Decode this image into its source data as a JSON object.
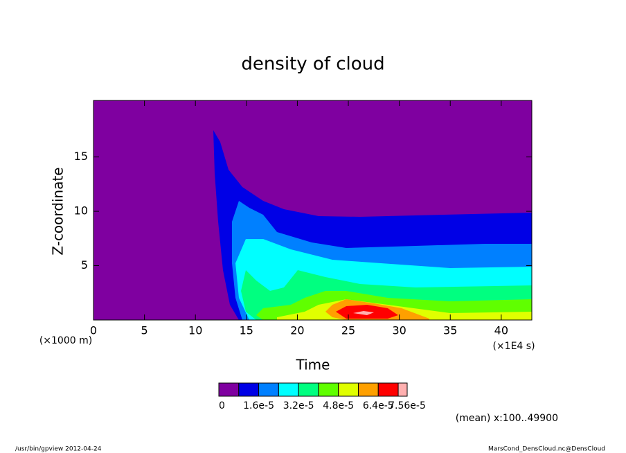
{
  "chart_data": {
    "type": "contour",
    "title": "density of cloud",
    "x_label": "Time",
    "y_label": "Z-coordinate",
    "x_unit": "(×1E4 s)",
    "y_unit": "(×1000 m)",
    "xlim": [
      0,
      43
    ],
    "xticks": [
      0,
      5,
      10,
      15,
      20,
      25,
      30,
      35,
      40
    ],
    "ylim": [
      0,
      20.2
    ],
    "yticks": [
      5,
      10,
      15
    ],
    "levels": [
      0,
      8e-06,
      1.6e-05,
      2.4e-05,
      3.2e-05,
      4e-05,
      4.8e-05,
      5.6e-05,
      6.4e-05,
      7.2e-05,
      7.56e-05
    ],
    "colors": [
      "#7f00a0",
      "#0000e6",
      "#0080ff",
      "#00ffff",
      "#00ff80",
      "#60ff00",
      "#e0ff00",
      "#ffa000",
      "#ff0000",
      "#ffb0b0"
    ],
    "colorbar_ticks": [
      0,
      {
        "value": 1.6e-05,
        "label": "1.6e-5"
      },
      {
        "value": 3.2e-05,
        "label": "3.2e-5"
      },
      {
        "value": 4.8e-05,
        "label": "4.8e-5"
      },
      {
        "value": 6.4e-05,
        "label": "6.4e-5"
      },
      {
        "value": 7.56e-05,
        "label": "7.56e-5"
      }
    ],
    "annotation": "(mean) x:100..49900",
    "footer_left": "/usr/bin/gpview  2012-04-24",
    "footer_right": "MarsCond_DensCloud.nc@DensCloud"
  }
}
